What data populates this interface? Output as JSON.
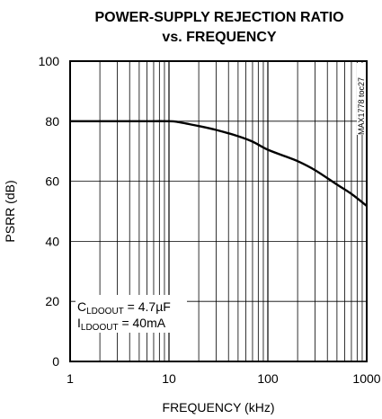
{
  "chart_data": {
    "type": "line",
    "title_line1": "POWER-SUPPLY REJECTION RATIO",
    "title_line2": "vs. FREQUENCY",
    "xlabel": "FREQUENCY (kHz)",
    "ylabel": "PSRR (dB)",
    "x_scale": "log",
    "xlim": [
      1,
      1000
    ],
    "ylim": [
      0,
      100
    ],
    "x_ticks": [
      "1",
      "10",
      "100",
      "1000"
    ],
    "y_ticks": [
      "0",
      "20",
      "40",
      "60",
      "80",
      "100"
    ],
    "grid": true,
    "series": [
      {
        "x": [
          1,
          2,
          5,
          10,
          12,
          15,
          20,
          30,
          50,
          70,
          100,
          150,
          200,
          300,
          500,
          700,
          1000
        ],
        "values": [
          80,
          80,
          80,
          80,
          79.8,
          79.2,
          78.4,
          77.1,
          75,
          73.2,
          70.5,
          68.3,
          66.7,
          63.7,
          58.9,
          55.8,
          51.8
        ]
      }
    ],
    "annotations": {
      "cap_main": "C",
      "cap_sub": "LDOOUT",
      "cap_value": " = 4.7µF",
      "cur_main": "I",
      "cur_sub": "LDOOUT",
      "cur_value": " = 40mA"
    },
    "figure_id": "MAX1778 toc27"
  }
}
